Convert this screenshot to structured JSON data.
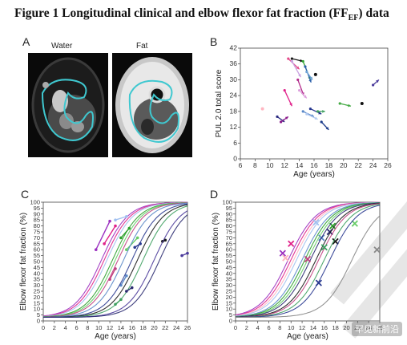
{
  "figure": {
    "title_main": "Figure 1 Longitudinal clinical and elbow flexor fat fraction (FF",
    "title_sub": "EF",
    "title_end": ") data",
    "watermark_text": "罕见新前沿"
  },
  "panel_a": {
    "letter": "A",
    "label_left": "Water",
    "label_right": "Fat"
  },
  "chart_data": [
    {
      "id": "B",
      "type": "scatter",
      "xlabel": "Age (years)",
      "ylabel": "PUL 2.0 total score",
      "xlim": [
        6,
        26
      ],
      "ylim": [
        0,
        42
      ],
      "xticks": [
        6,
        8,
        10,
        12,
        14,
        16,
        18,
        20,
        22,
        24,
        26
      ],
      "yticks": [
        0,
        6,
        12,
        18,
        24,
        30,
        36,
        42
      ],
      "grid": false,
      "series": [
        {
          "color": "#1a1a1a",
          "points": [
            [
              13.0,
              38
            ],
            [
              14.5,
              37
            ]
          ]
        },
        {
          "color": "#2ca02c",
          "points": [
            [
              14.5,
              37
            ],
            [
              15.5,
              30
            ]
          ]
        },
        {
          "color": "#2b5faa",
          "points": [
            [
              14.8,
              35
            ],
            [
              15.6,
              29
            ]
          ]
        },
        {
          "color": "#e34a8a",
          "points": [
            [
              12.5,
              38
            ],
            [
              14.0,
              34
            ]
          ]
        },
        {
          "color": "#c8a0e0",
          "points": [
            [
              13.0,
              37
            ],
            [
              14.2,
              31
            ]
          ]
        },
        {
          "color": "#6fa3d8",
          "points": [
            [
              15.0,
              33
            ],
            [
              15.8,
              30
            ]
          ]
        },
        {
          "color": "#111111",
          "points": [
            [
              16.2,
              32
            ],
            [
              16.2,
              32
            ]
          ]
        },
        {
          "color": "#e0218a",
          "points": [
            [
              12.0,
              26
            ],
            [
              13.0,
              20
            ]
          ]
        },
        {
          "color": "#b22a8a",
          "points": [
            [
              13.8,
              30
            ],
            [
              14.6,
              24
            ]
          ]
        },
        {
          "color": "#dda0dd",
          "points": [
            [
              14.0,
              26
            ],
            [
              15.0,
              23
            ]
          ]
        },
        {
          "color": "#4a3a9a",
          "points": [
            [
              24.0,
              28
            ],
            [
              24.8,
              30
            ]
          ]
        },
        {
          "color": "#ffb6c1",
          "points": [
            [
              9.0,
              19
            ],
            [
              9.0,
              19
            ]
          ]
        },
        {
          "color": "#2a2a80",
          "points": [
            [
              11.0,
              16
            ],
            [
              12.0,
              14
            ]
          ]
        },
        {
          "color": "#8b1a8b",
          "points": [
            [
              11.5,
              14
            ],
            [
              12.5,
              16
            ]
          ]
        },
        {
          "color": "#2a3a90",
          "points": [
            [
              15.5,
              19
            ],
            [
              17.0,
              17
            ]
          ]
        },
        {
          "color": "#3fa060",
          "points": [
            [
              16.5,
              18
            ],
            [
              17.5,
              18
            ]
          ]
        },
        {
          "color": "#44aa44",
          "points": [
            [
              19.5,
              21
            ],
            [
              21.0,
              20
            ]
          ]
        },
        {
          "color": "#111111",
          "points": [
            [
              22.5,
              21
            ],
            [
              22.5,
              21
            ]
          ]
        },
        {
          "color": "#5a88c8",
          "points": [
            [
              14.5,
              18
            ],
            [
              16.0,
              16
            ]
          ]
        },
        {
          "color": "#b0c8f0",
          "points": [
            [
              15.0,
              17
            ],
            [
              16.5,
              15
            ]
          ]
        },
        {
          "color": "#1a3a8a",
          "points": [
            [
              17.0,
              14
            ],
            [
              18.0,
              11
            ]
          ]
        }
      ]
    },
    {
      "id": "C",
      "type": "line",
      "xlabel": "Age (years)",
      "ylabel": "Elbow flexor fat fraction (%)",
      "xlim": [
        0,
        26
      ],
      "ylim": [
        0,
        100
      ],
      "xticks": [
        0,
        2,
        4,
        6,
        8,
        10,
        12,
        14,
        16,
        18,
        20,
        22,
        24,
        26
      ],
      "yticks": [
        0,
        5,
        10,
        15,
        20,
        25,
        30,
        35,
        40,
        45,
        50,
        55,
        60,
        65,
        70,
        75,
        80,
        85,
        90,
        95,
        100
      ],
      "grid": false,
      "series": [
        {
          "color": "#9b30c0",
          "midpoint": 10.5,
          "values": [
            [
              9.5,
              60
            ],
            [
              12.0,
              84
            ]
          ]
        },
        {
          "color": "#e0218a",
          "midpoint": 11.0,
          "values": [
            [
              11.0,
              65
            ],
            [
              13.0,
              80
            ]
          ]
        },
        {
          "color": "#a0c0f0",
          "midpoint": 11.5,
          "values": [
            [
              13.0,
              85
            ],
            [
              15.0,
              88
            ]
          ]
        },
        {
          "color": "#2ca02c",
          "midpoint": 12.5,
          "values": [
            [
              14.0,
              70
            ],
            [
              15.5,
              78
            ]
          ]
        },
        {
          "color": "#66cc66",
          "midpoint": 13.0,
          "values": [
            [
              15.0,
              60
            ],
            [
              17.0,
              70
            ]
          ]
        },
        {
          "color": "#c04080",
          "midpoint": 13.5,
          "values": [
            [
              12.0,
              35
            ],
            [
              13.0,
              44
            ]
          ]
        },
        {
          "color": "#5a88c8",
          "midpoint": 14.5,
          "values": [
            [
              14.0,
              30
            ],
            [
              15.0,
              38
            ]
          ]
        },
        {
          "color": "#2a3a90",
          "midpoint": 16.0,
          "values": [
            [
              16.5,
              62
            ],
            [
              17.5,
              65
            ]
          ]
        },
        {
          "color": "#1a1a1a",
          "midpoint": 17.0,
          "values": [
            [
              21.5,
              67
            ],
            [
              22.0,
              68
            ]
          ]
        },
        {
          "color": "#3fa060",
          "midpoint": 18.0,
          "values": [
            [
              13.0,
              14
            ],
            [
              14.0,
              18
            ]
          ]
        },
        {
          "color": "#4a3a9a",
          "midpoint": 20.0,
          "values": [
            [
              25.0,
              55
            ],
            [
              26.0,
              57
            ]
          ]
        },
        {
          "color": "#2a2a70",
          "midpoint": 21.0,
          "values": [
            [
              15.0,
              25
            ],
            [
              16.0,
              28
            ]
          ]
        }
      ]
    },
    {
      "id": "D",
      "type": "line",
      "xlabel": "Age (years)",
      "ylabel": "Elbow flexor fat fraction (%)",
      "xlim": [
        0,
        26
      ],
      "ylim": [
        0,
        100
      ],
      "xticks": [
        0,
        2,
        4,
        6,
        8,
        10,
        12,
        14,
        16,
        18,
        20,
        22,
        24,
        26
      ],
      "yticks": [
        0,
        5,
        10,
        15,
        20,
        25,
        30,
        35,
        40,
        45,
        50,
        55,
        60,
        65,
        70,
        75,
        80,
        85,
        90,
        95,
        100
      ],
      "grid": false,
      "series": [
        {
          "color": "#9b30c0",
          "midpoint": 9.5,
          "marker": [
            8.5,
            57
          ]
        },
        {
          "color": "#e0218a",
          "midpoint": 10.0,
          "marker": [
            10.0,
            65
          ]
        },
        {
          "color": "#ffb6c1",
          "midpoint": 10.5,
          "marker": [
            9.0,
            53
          ]
        },
        {
          "color": "#a0c0f0",
          "midpoint": 11.0,
          "marker": [
            14.5,
            83
          ]
        },
        {
          "color": "#5a88c8",
          "midpoint": 12.0,
          "marker": [
            15.5,
            70
          ]
        },
        {
          "color": "#2ca02c",
          "midpoint": 12.5,
          "marker": [
            17.5,
            80
          ]
        },
        {
          "color": "#66cc66",
          "midpoint": 13.0,
          "marker": [
            21.5,
            82
          ]
        },
        {
          "color": "#2a2a70",
          "midpoint": 13.5,
          "marker": [
            17.0,
            75
          ]
        },
        {
          "color": "#1a1a1a",
          "midpoint": 14.5,
          "marker": [
            18.0,
            67
          ]
        },
        {
          "color": "#c04080",
          "midpoint": 15.0,
          "marker": [
            13.0,
            52
          ]
        },
        {
          "color": "#3fa060",
          "midpoint": 16.0,
          "marker": [
            16.0,
            62
          ]
        },
        {
          "color": "#2a3a90",
          "midpoint": 17.0,
          "marker": [
            15.0,
            32
          ]
        },
        {
          "color": "#888888",
          "midpoint": 21.0,
          "marker": [
            25.5,
            60
          ]
        }
      ]
    }
  ]
}
